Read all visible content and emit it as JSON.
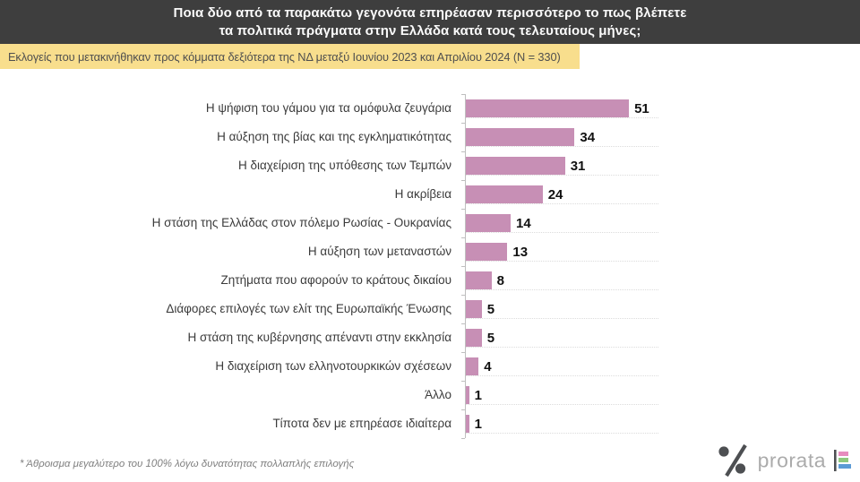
{
  "header": {
    "title_line1": "Ποια δύο από τα παρακάτω γεγονότα επηρέασαν περισσότερο το πως βλέπετε",
    "title_line2": "τα πολιτικά πράγματα στην Ελλάδα κατά τους τελευταίους μήνες;"
  },
  "subtitle_band": {
    "text": "Εκλογείς που μετακινήθηκαν προς κόμματα δεξιότερα της ΝΔ μεταξύ Ιουνίου 2023 και Απριλίου 2024 (N = 330)"
  },
  "chart_data": {
    "type": "bar",
    "orientation": "horizontal",
    "title": "Ποια δύο από τα παρακάτω γεγονότα επηρέασαν περισσότερο το πως βλέπετε τα πολιτικά πράγματα στην Ελλάδα κατά τους τελευταίους μήνες;",
    "subtitle": "Εκλογείς που μετακινήθηκαν προς κόμματα δεξιότερα της ΝΔ μεταξύ Ιουνίου 2023 και Απριλίου 2024 (N = 330)",
    "categories": [
      "Η ψήφιση του γάμου για τα ομόφυλα ζευγάρια",
      "Η αύξηση της βίας και της εγκληματικότητας",
      "Η διαχείριση της υπόθεσης των Τεμπών",
      "Η ακρίβεια",
      "Η στάση της Ελλάδας στον πόλεμο Ρωσίας - Ουκρανίας",
      "Η αύξηση των μεταναστών",
      "Ζητήματα που αφορούν το κράτους δικαίου",
      "Διάφορες επιλογές των ελίτ της Ευρωπαϊκής Ένωσης",
      "Η στάση της κυβέρνησης απέναντι στην εκκλησία",
      "Η διαχείριση των ελληνοτουρκικών σχέσεων",
      "Άλλο",
      "Τίποτα δεν με επηρέασε ιδιαίτερα"
    ],
    "values": [
      51,
      34,
      31,
      24,
      14,
      13,
      8,
      5,
      5,
      4,
      1,
      1
    ],
    "xlim": [
      0,
      55
    ],
    "data_labels": true,
    "legend": "none",
    "grid": "faint dotted horizontal lines, axis ticks at row boundaries",
    "bar_color": "#C78FB5"
  },
  "footnote": {
    "text": "* Άθροισμα μεγαλύτερο του 100% λόγω δυνατότητας πολλαπλής επιλογής"
  },
  "logo": {
    "brand_text": "prorata",
    "percent_icon": "percent-icon",
    "bar_mark_icon": "mini-bar-chart-icon",
    "mark_color": "#4D4F52",
    "bar_mark_colors": [
      "#E78CBE",
      "#8FC97E",
      "#5C9BD5"
    ]
  },
  "colors": {
    "header_bg": "#3E3E3E",
    "band_bg": "#F8DE8D",
    "bar": "#C78FB5",
    "axis": "#BFBFBF",
    "value_text": "#111111",
    "footnote_text": "#7F7F7F"
  }
}
